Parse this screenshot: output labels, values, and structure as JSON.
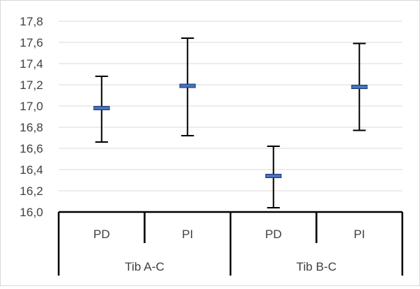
{
  "chart_data": {
    "type": "error-bar",
    "title": "",
    "xlabel": "",
    "ylabel": "",
    "ylim": [
      16.0,
      17.8
    ],
    "yticks": [
      "16,0",
      "16,2",
      "16,4",
      "16,6",
      "16,8",
      "17,0",
      "17,2",
      "17,4",
      "17,6",
      "17,8"
    ],
    "grid": true,
    "groups": [
      {
        "label": "Tib A-C",
        "categories": [
          "PD",
          "PI"
        ]
      },
      {
        "label": "Tib B-C",
        "categories": [
          "PD",
          "PI"
        ]
      }
    ],
    "points": [
      {
        "group": "Tib A-C",
        "category": "PD",
        "mean": 16.98,
        "low": 16.66,
        "high": 17.28
      },
      {
        "group": "Tib A-C",
        "category": "PI",
        "mean": 17.19,
        "low": 16.72,
        "high": 17.64
      },
      {
        "group": "Tib B-C",
        "category": "PD",
        "mean": 16.34,
        "low": 16.04,
        "high": 16.62
      },
      {
        "group": "Tib B-C",
        "category": "PI",
        "mean": 17.18,
        "low": 16.77,
        "high": 17.59
      }
    ],
    "colors": {
      "marker": "#4472c4",
      "marker_edge": "#1f3864",
      "whisker": "#000000",
      "grid": "#d9d9d9",
      "text": "#404040"
    }
  }
}
